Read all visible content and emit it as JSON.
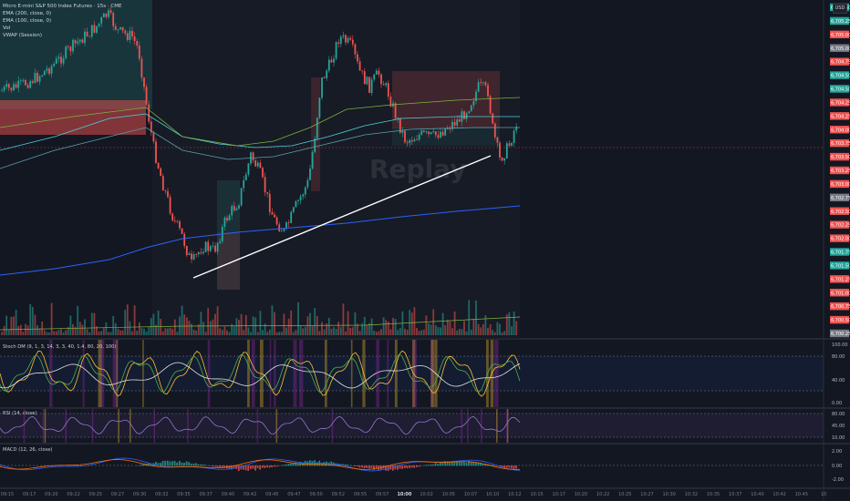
{
  "chart_title": "Micro E-mini S&P 500 Index Futures · 15s · CME",
  "indicators": [
    "EMA (200, close, 0)",
    "EMA (100, close, 0)",
    "Vol",
    "VWAP (Session)"
  ],
  "currency_label": "USD",
  "watermark": "Replay",
  "stoch_label": "Stoch DM (9, 1, 3, 14, 3, 3, 40, 1.4, 80, 20, 100)",
  "rsi_label": "RSI (14, close)",
  "macd_label": "MACD (12, 26, close)",
  "price_labels": [
    {
      "text": "6,705.50",
      "kind": "green"
    },
    {
      "text": "6,705.25",
      "kind": "green"
    },
    {
      "text": "6,705.00",
      "kind": "red"
    },
    {
      "text": "6,705.00",
      "kind": "gray"
    },
    {
      "text": "6,704.75",
      "kind": "red"
    },
    {
      "text": "6,704.50",
      "kind": "green"
    },
    {
      "text": "6,704.50",
      "kind": "green"
    },
    {
      "text": "6,704.25",
      "kind": "red"
    },
    {
      "text": "6,704.25",
      "kind": "red"
    },
    {
      "text": "6,704.00",
      "kind": "red"
    },
    {
      "text": "6,703.75",
      "kind": "red"
    },
    {
      "text": "6,703.50",
      "kind": "red"
    },
    {
      "text": "6,703.25",
      "kind": "red"
    },
    {
      "text": "6,703.00",
      "kind": "red"
    },
    {
      "text": "6,702.75",
      "kind": "gray"
    },
    {
      "text": "6,702.50",
      "kind": "red"
    },
    {
      "text": "6,702.25",
      "kind": "red"
    },
    {
      "text": "6,702.00",
      "kind": "red"
    },
    {
      "text": "6,701.75",
      "kind": "green"
    },
    {
      "text": "6,701.50",
      "kind": "green"
    },
    {
      "text": "6,701.25",
      "kind": "red"
    },
    {
      "text": "6,701.00",
      "kind": "red"
    },
    {
      "text": "6,700.75",
      "kind": "red"
    },
    {
      "text": "6,700.50",
      "kind": "red"
    },
    {
      "text": "6,700.25",
      "kind": "gray"
    }
  ],
  "stoch_axis": [
    "100.00",
    "80.00",
    "40.00",
    "0.00"
  ],
  "rsi_axis": [
    "80.00",
    "45.00",
    "10.00"
  ],
  "macd_axis": [
    "2.00",
    "0.00",
    "-2.00"
  ],
  "time_labels": [
    "09:15",
    "09:17",
    "09:20",
    "09:22",
    "09:25",
    "09:27",
    "09:30",
    "09:32",
    "09:35",
    "09:37",
    "09:40",
    "09:42",
    "09:45",
    "09:47",
    "09:50",
    "09:52",
    "09:55",
    "09:57",
    "10:00",
    "10:02",
    "10:05",
    "10:07",
    "10:10",
    "10:12",
    "10:15",
    "10:17",
    "10:20",
    "10:22",
    "10:25",
    "10:27",
    "10:30",
    "10:32",
    "10:35",
    "10:37",
    "10:40",
    "10:42",
    "10:45",
    "10"
  ],
  "colors": {
    "background": "#131722",
    "up": "#26a69a",
    "down": "#ef5350",
    "trendline": "#ffffff",
    "ema200": "#2962ff",
    "ema100": "#4dd0e1",
    "vwap": "#7cb342"
  }
}
